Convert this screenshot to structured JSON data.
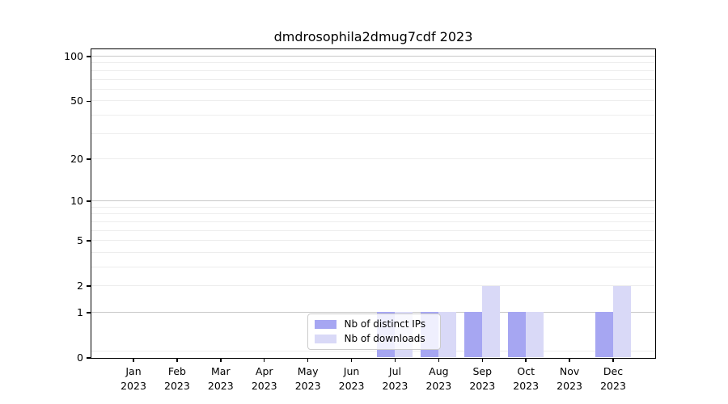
{
  "chart_data": {
    "type": "bar",
    "title": "dmdrosophila2dmug7cdf 2023",
    "categories": [
      "Jan",
      "Feb",
      "Mar",
      "Apr",
      "May",
      "Jun",
      "Jul",
      "Aug",
      "Sep",
      "Oct",
      "Nov",
      "Dec"
    ],
    "category_year": "2023",
    "series": [
      {
        "name": "Nb of distinct IPs",
        "color": "#a6a6f2",
        "values": [
          0,
          0,
          0,
          0,
          0,
          0,
          1,
          1,
          1,
          1,
          0,
          1
        ]
      },
      {
        "name": "Nb of downloads",
        "color": "#d9d9f7",
        "values": [
          0,
          0,
          0,
          0,
          0,
          0,
          1,
          1,
          2,
          1,
          0,
          2
        ]
      }
    ],
    "yscale": "log1p",
    "ylim": [
      0,
      112
    ],
    "yticks": [
      0,
      1,
      2,
      5,
      10,
      20,
      50,
      100
    ],
    "gridlines": {
      "major": [
        1,
        10,
        100
      ],
      "minor": [
        0.1,
        2,
        3,
        4,
        5,
        6,
        7,
        8,
        9,
        20,
        30,
        40,
        50,
        60,
        70,
        80,
        90
      ]
    },
    "legend_position": "lower-center",
    "grid": "horizontal",
    "background": "#ffffff",
    "axis_color": "#000000",
    "grid_major_color": "#c8c8c8",
    "grid_minor_color": "#ededed"
  }
}
